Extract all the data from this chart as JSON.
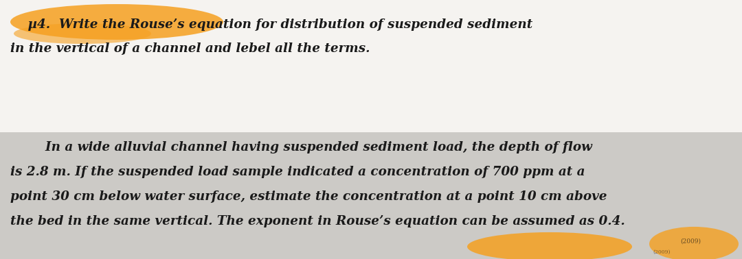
{
  "bg_top": "#f5f3f0",
  "bg_bottom": "#cccac6",
  "bg_divider": "#ffffff",
  "text_color": "#1a1a1a",
  "highlight_color": "#f5a020",
  "figsize": [
    10.8,
    3.78
  ],
  "dpi": 100,
  "font_size": 13.2,
  "top_lines": [
    "    µ4.  Write the Rouse’s equation for distribution of suspended sediment",
    "in the vertical of a channel and lebel all the terms."
  ],
  "bottom_lines": [
    "        In a wide alluvial channel having suspended sediment load, the depth of flow",
    "is 2.8 m. If the suspended load sample indicated a concentration of 700 ppm at a",
    "point 30 cm below water surface, estimate the concentration at a point 10 cm above",
    "the bed in the same vertical. The exponent in Rouse’s equation can be assumed as 0.4."
  ]
}
